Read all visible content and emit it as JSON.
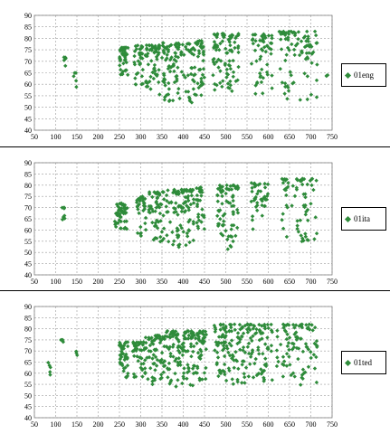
{
  "colors": {
    "marker": "#2e8b3a",
    "grid": "#9a9a9a",
    "axis": "#7f7f7f"
  },
  "chart_data": [
    {
      "type": "scatter",
      "legend": "01eng",
      "legend_position": "right",
      "grid": true,
      "xlim": [
        50,
        750
      ],
      "ylim": [
        40,
        90
      ],
      "xticks": [
        "50",
        "100",
        "150",
        "200",
        "250",
        "300",
        "350",
        "400",
        "450",
        "500",
        "550",
        "600",
        "650",
        "700",
        "750"
      ],
      "yticks": [
        "40",
        "45",
        "50",
        "55",
        "60",
        "65",
        "70",
        "75",
        "80",
        "85",
        "90"
      ],
      "clusters": [
        {
          "x": [
            118,
            125
          ],
          "y": [
            66,
            72
          ],
          "n": 6
        },
        {
          "x": [
            142,
            150
          ],
          "y": [
            58,
            65
          ],
          "n": 5
        },
        {
          "x": [
            250,
            270
          ],
          "y": [
            64,
            76
          ],
          "n": 45
        },
        {
          "x": [
            285,
            305
          ],
          "y": [
            58,
            77
          ],
          "n": 35
        },
        {
          "x": [
            310,
            345
          ],
          "y": [
            55,
            77
          ],
          "n": 55
        },
        {
          "x": [
            350,
            420
          ],
          "y": [
            52,
            78
          ],
          "n": 95
        },
        {
          "x": [
            420,
            450
          ],
          "y": [
            55,
            79
          ],
          "n": 50
        },
        {
          "x": [
            470,
            530
          ],
          "y": [
            57,
            82
          ],
          "n": 85
        },
        {
          "x": [
            560,
            610
          ],
          "y": [
            55,
            82
          ],
          "n": 55
        },
        {
          "x": [
            625,
            715
          ],
          "y": [
            53,
            83
          ],
          "n": 85
        },
        {
          "x": [
            735,
            742
          ],
          "y": [
            62,
            64
          ],
          "n": 3
        }
      ]
    },
    {
      "type": "scatter",
      "legend": "01ita",
      "legend_position": "right",
      "grid": true,
      "xlim": [
        50,
        750
      ],
      "ylim": [
        40,
        90
      ],
      "xticks": [
        "50",
        "100",
        "150",
        "200",
        "250",
        "300",
        "350",
        "400",
        "450",
        "500",
        "550",
        "600",
        "650",
        "700",
        "750"
      ],
      "yticks": [
        "40",
        "45",
        "50",
        "55",
        "60",
        "65",
        "70",
        "75",
        "80",
        "85",
        "90"
      ],
      "clusters": [
        {
          "x": [
            115,
            122
          ],
          "y": [
            64,
            70
          ],
          "n": 8
        },
        {
          "x": [
            238,
            270
          ],
          "y": [
            60,
            72
          ],
          "n": 45
        },
        {
          "x": [
            290,
            312
          ],
          "y": [
            56,
            76
          ],
          "n": 30
        },
        {
          "x": [
            318,
            355
          ],
          "y": [
            54,
            77
          ],
          "n": 55
        },
        {
          "x": [
            360,
            425
          ],
          "y": [
            52,
            78
          ],
          "n": 95
        },
        {
          "x": [
            430,
            450
          ],
          "y": [
            60,
            79
          ],
          "n": 30
        },
        {
          "x": [
            480,
            530
          ],
          "y": [
            51,
            80
          ],
          "n": 75
        },
        {
          "x": [
            560,
            600
          ],
          "y": [
            60,
            81
          ],
          "n": 40
        },
        {
          "x": [
            630,
            715
          ],
          "y": [
            54,
            83
          ],
          "n": 70
        }
      ]
    },
    {
      "type": "scatter",
      "legend": "01ted",
      "legend_position": "right",
      "grid": true,
      "xlim": [
        50,
        750
      ],
      "ylim": [
        40,
        90
      ],
      "xticks": [
        "50",
        "100",
        "150",
        "200",
        "250",
        "300",
        "350",
        "400",
        "450",
        "500",
        "550",
        "600",
        "650",
        "700",
        "750"
      ],
      "yticks": [
        "40",
        "45",
        "50",
        "55",
        "60",
        "65",
        "70",
        "75",
        "80",
        "85",
        "90"
      ],
      "clusters": [
        {
          "x": [
            82,
            88
          ],
          "y": [
            58,
            66
          ],
          "n": 5
        },
        {
          "x": [
            112,
            120
          ],
          "y": [
            73,
            75
          ],
          "n": 4
        },
        {
          "x": [
            146,
            152
          ],
          "y": [
            68,
            70
          ],
          "n": 3
        },
        {
          "x": [
            250,
            270
          ],
          "y": [
            58,
            74
          ],
          "n": 45
        },
        {
          "x": [
            280,
            310
          ],
          "y": [
            58,
            74
          ],
          "n": 40
        },
        {
          "x": [
            310,
            360
          ],
          "y": [
            55,
            77
          ],
          "n": 70
        },
        {
          "x": [
            360,
            430
          ],
          "y": [
            54,
            79
          ],
          "n": 110
        },
        {
          "x": [
            430,
            455
          ],
          "y": [
            56,
            79
          ],
          "n": 40
        },
        {
          "x": [
            470,
            560
          ],
          "y": [
            55,
            82
          ],
          "n": 120
        },
        {
          "x": [
            560,
            610
          ],
          "y": [
            56,
            82
          ],
          "n": 60
        },
        {
          "x": [
            620,
            715
          ],
          "y": [
            54,
            82
          ],
          "n": 90
        }
      ]
    }
  ]
}
